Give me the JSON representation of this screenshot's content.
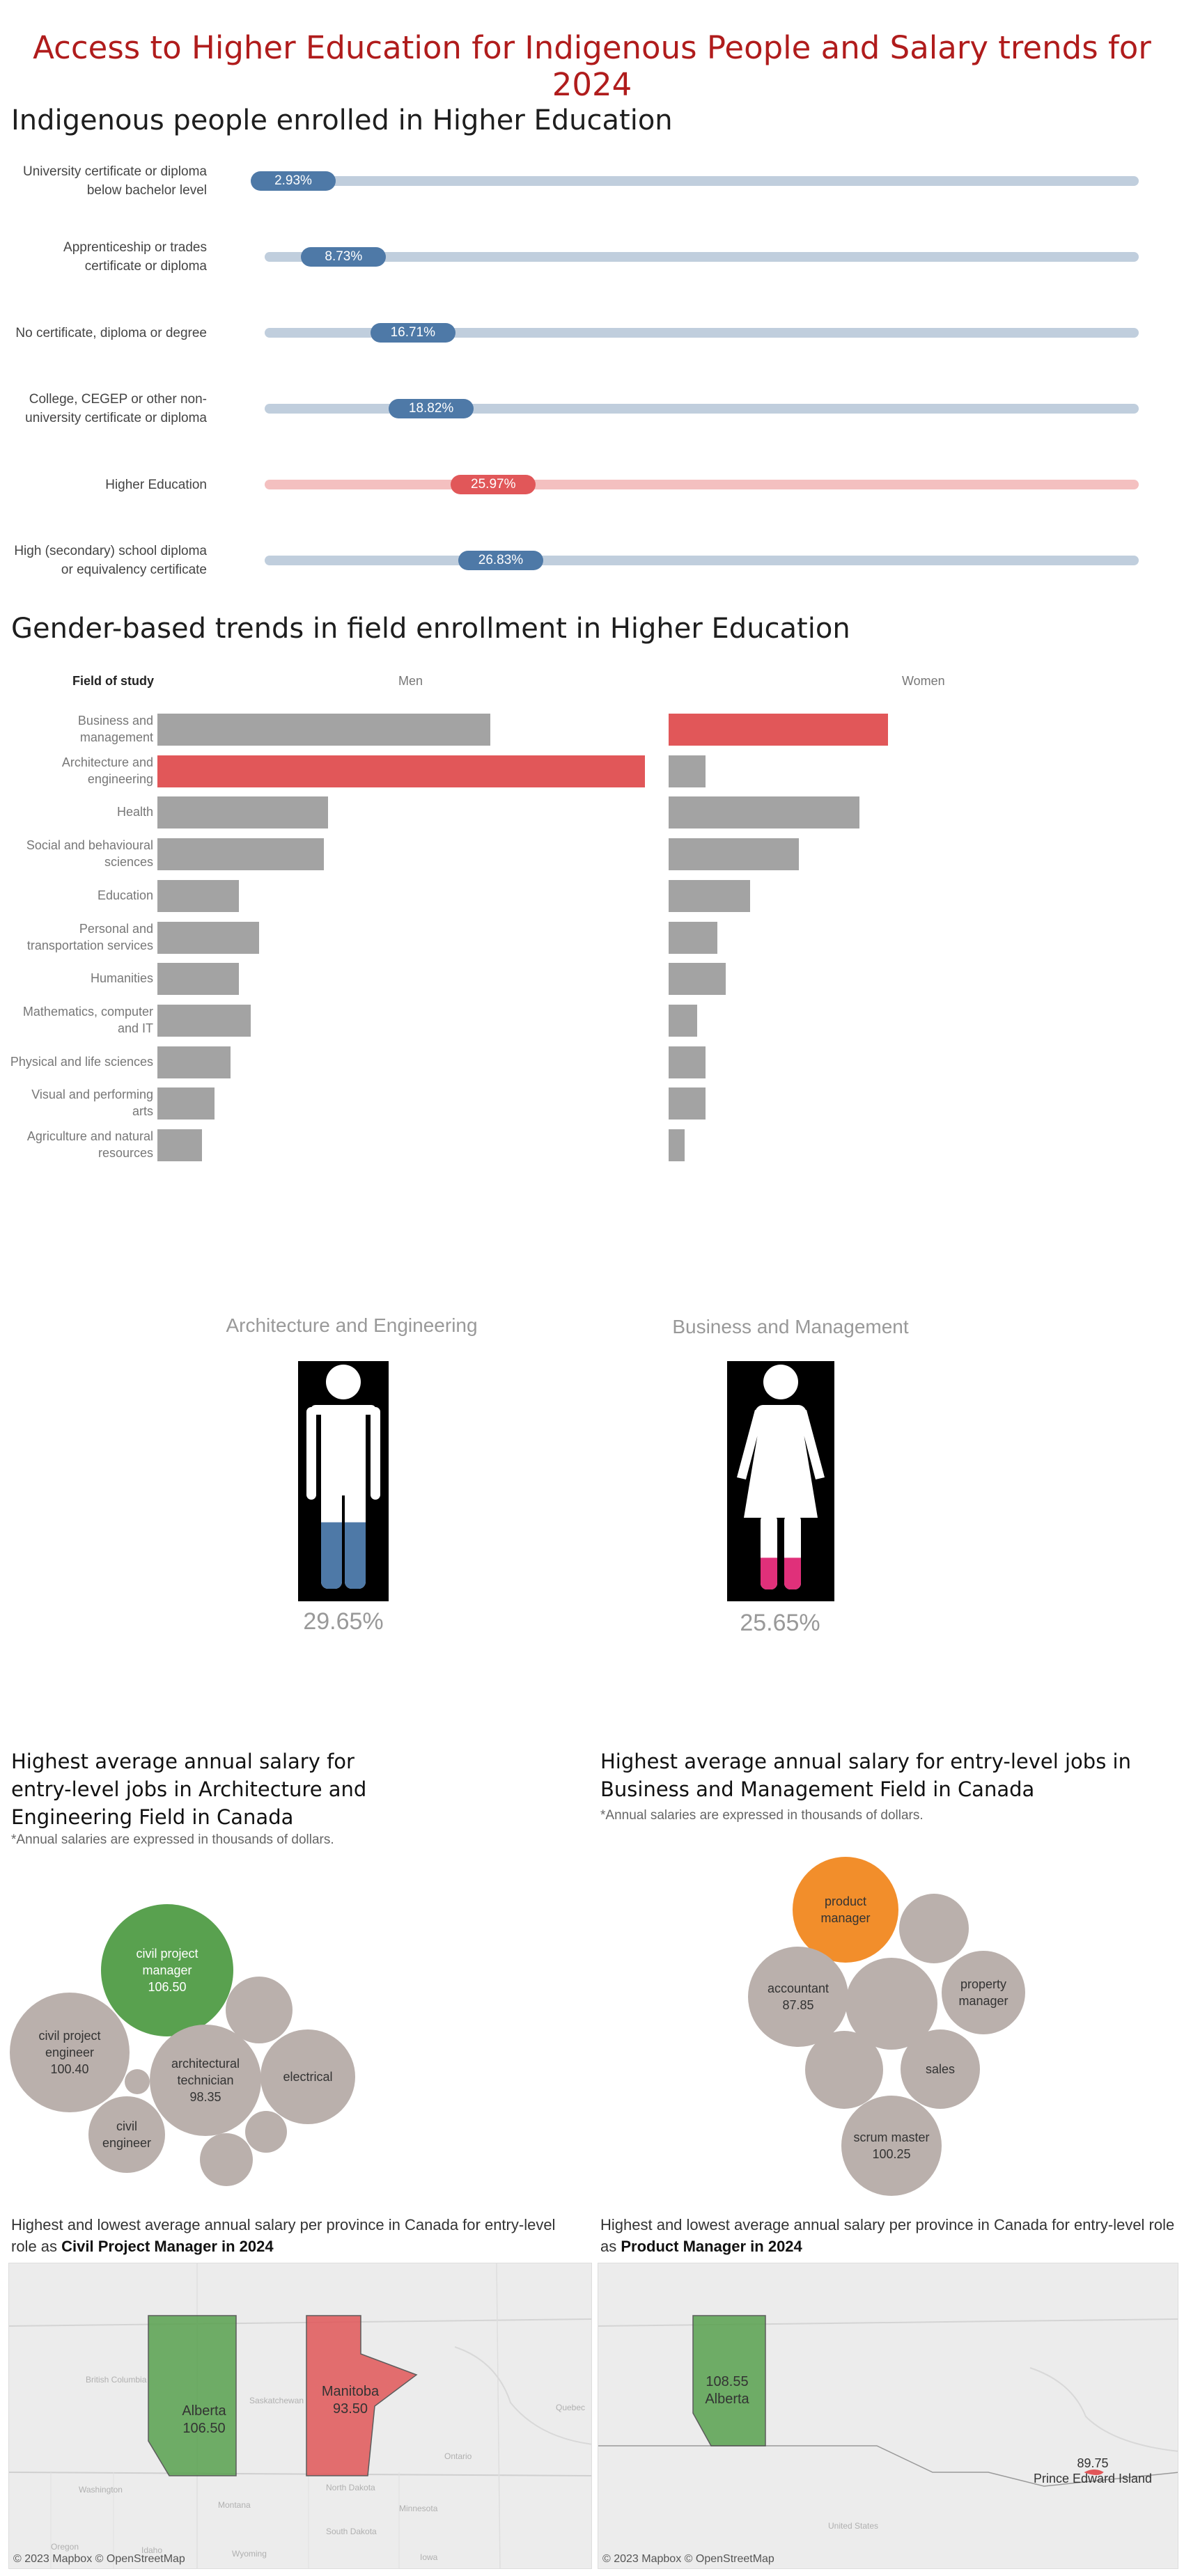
{
  "title": "Access to Higher Education for Indigenous People and Salary trends for 2024",
  "enrollment": {
    "heading": "Indigenous people enrolled in Higher Education",
    "rows": [
      {
        "label": "University certificate or diploma below bachelor level",
        "value_text": "2.93%",
        "value": 2.93,
        "highlight": false
      },
      {
        "label": "Apprenticeship or trades certificate or diploma",
        "value_text": "8.73%",
        "value": 8.73,
        "highlight": false
      },
      {
        "label": "No certificate, diploma or degree",
        "value_text": "16.71%",
        "value": 16.71,
        "highlight": false
      },
      {
        "label": "College, CEGEP or other non-university certificate or diploma",
        "value_text": "18.82%",
        "value": 18.82,
        "highlight": false
      },
      {
        "label": "Higher Education",
        "value_text": "25.97%",
        "value": 25.97,
        "highlight": true
      },
      {
        "label": "High (secondary) school diploma or equivalency certificate",
        "value_text": "26.83%",
        "value": 26.83,
        "highlight": false
      }
    ],
    "colors": {
      "pill": "#4e79a7",
      "track": "#c0cedd",
      "pill_hl": "#e15759",
      "track_hl": "#f4c0c0"
    }
  },
  "gender": {
    "heading": "Gender-based trends in field enrollment in Higher Education",
    "field_header": "Field of study",
    "men_header": "Men",
    "women_header": "Women",
    "fields": [
      {
        "label": "Business and management",
        "men": 41,
        "women": 27,
        "hl": "women"
      },
      {
        "label": "Architecture and engineering",
        "men": 60,
        "women": 4.5,
        "hl": "men"
      },
      {
        "label": "Health",
        "men": 21,
        "women": 23.5,
        "hl": ""
      },
      {
        "label": "Social and behavioural sciences",
        "men": 20.5,
        "women": 16,
        "hl": ""
      },
      {
        "label": "Education",
        "men": 10,
        "women": 10,
        "hl": ""
      },
      {
        "label": "Personal and transportation services",
        "men": 12.5,
        "women": 6,
        "hl": ""
      },
      {
        "label": "Humanities",
        "men": 10,
        "women": 7,
        "hl": ""
      },
      {
        "label": "Mathematics, computer and IT",
        "men": 11.5,
        "women": 3.5,
        "hl": ""
      },
      {
        "label": "Physical and life sciences",
        "men": 9,
        "women": 4.5,
        "hl": ""
      },
      {
        "label": "Visual and performing arts",
        "men": 7,
        "women": 4.5,
        "hl": ""
      },
      {
        "label": "Agriculture and natural resources",
        "men": 5.5,
        "women": 2,
        "hl": ""
      }
    ],
    "colors": {
      "bar": "#a3a3a3",
      "highlight": "#e15759"
    }
  },
  "figures": {
    "man": {
      "title": "Architecture and Engineering",
      "percent_text": "29.65%",
      "fill_pct": 29.65,
      "fill_color": "#4e79a7"
    },
    "woman": {
      "title": "Business and Management",
      "percent_text": "25.65%",
      "fill_pct": 25.65,
      "fill_color": "#e0307a"
    }
  },
  "salary": {
    "left": {
      "heading_lines": [
        "Highest average annual salary for",
        "entry-level jobs in Architecture and",
        "Engineering Field in Canada"
      ],
      "note": "*Annual salaries are expressed in thousands of dollars.",
      "bubbles": [
        {
          "label": "civil project\nmanager\n106.50",
          "value": 106.5,
          "color": "#59a14f",
          "text_color": "#ffffff"
        },
        {
          "label": "civil project\nengineer\n100.40",
          "value": 100.4,
          "color": "#bab0ac",
          "text_color": "#333333"
        },
        {
          "label": "architectural\ntechnician\n98.35",
          "value": 98.35,
          "color": "#bab0ac",
          "text_color": "#333333"
        },
        {
          "label": "electrical",
          "color": "#bab0ac",
          "text_color": "#333333"
        },
        {
          "label": "civil\nengineer",
          "color": "#bab0ac",
          "text_color": "#333333"
        },
        {
          "label": "",
          "color": "#bab0ac",
          "text_color": "#333333"
        },
        {
          "label": "",
          "color": "#bab0ac",
          "text_color": "#333333"
        },
        {
          "label": "",
          "color": "#bab0ac",
          "text_color": "#333333"
        },
        {
          "label": "",
          "color": "#bab0ac",
          "text_color": "#333333"
        }
      ]
    },
    "right": {
      "heading_lines": [
        "Highest average annual salary for entry-level jobs in",
        "Business and Management Field in Canada"
      ],
      "note": "*Annual salaries are expressed in thousands of dollars.",
      "bubbles": [
        {
          "label": "product\nmanager",
          "color": "#f28e2b",
          "text_color": "#333333"
        },
        {
          "label": "accountant\n87.85",
          "value": 87.85,
          "color": "#bab0ac",
          "text_color": "#333333"
        },
        {
          "label": "property\nmanager",
          "color": "#bab0ac",
          "text_color": "#333333"
        },
        {
          "label": "sales",
          "color": "#bab0ac",
          "text_color": "#333333"
        },
        {
          "label": "scrum master\n100.25",
          "value": 100.25,
          "color": "#bab0ac",
          "text_color": "#333333"
        },
        {
          "label": "",
          "color": "#bab0ac",
          "text_color": "#333333"
        },
        {
          "label": "",
          "color": "#bab0ac",
          "text_color": "#333333"
        },
        {
          "label": "",
          "color": "#bab0ac",
          "text_color": "#333333"
        }
      ]
    }
  },
  "maps": {
    "left": {
      "heading_prefix": "Highest and lowest average annual salary per province in Canada for entry-level role as ",
      "heading_bold": "Civil Project Manager in 2024",
      "credit": "© 2023 Mapbox © OpenStreetMap",
      "provinces": [
        {
          "label": "Alberta\n106.50",
          "value": 106.5,
          "color": "#59a14f"
        },
        {
          "label": "Manitoba\n93.50",
          "value": 93.5,
          "color": "#e15759"
        }
      ],
      "faint_labels": [
        "British Columbia",
        "Saskatchewan",
        "Ontario",
        "Quebec",
        "Washington",
        "Montana",
        "North Dakota",
        "South Dakota",
        "Minnesota",
        "Oregon",
        "Idaho",
        "Wyoming",
        "Iowa"
      ]
    },
    "right": {
      "heading_prefix": "Highest and lowest average annual salary per province in Canada for entry-level role as ",
      "heading_bold": "Product Manager in 2024",
      "credit": "© 2023 Mapbox © OpenStreetMap",
      "provinces": [
        {
          "label": "108.55\nAlberta",
          "value": 108.55,
          "color": "#59a14f"
        },
        {
          "label": "89.75\nPrince Edward Island",
          "value": 89.75,
          "color": "#e15759"
        }
      ],
      "faint_labels": [
        "United States"
      ]
    }
  }
}
